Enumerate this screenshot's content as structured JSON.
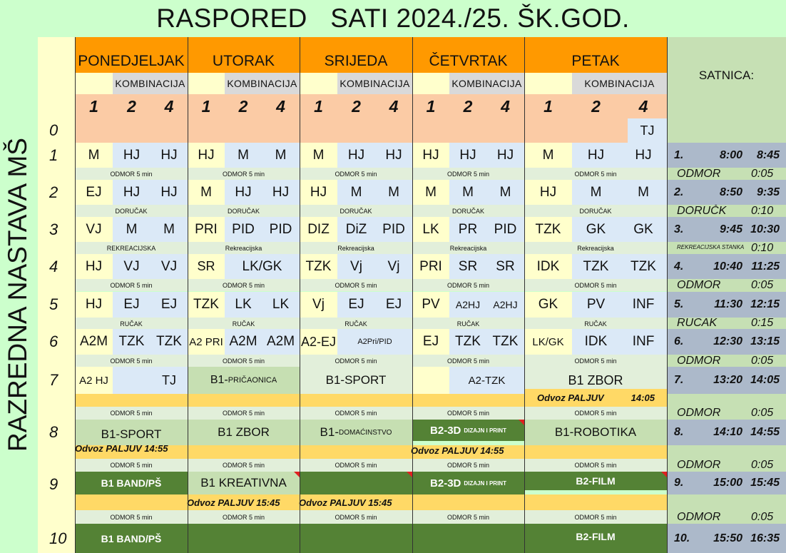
{
  "title": "RASPORED   SATI 2024./25. ŠK.GOD.",
  "side_title": "RAZREDNA NASTAVA MŠ",
  "colors": {
    "background": "#ccffcc",
    "day_header": "#ff9900",
    "peach": "#fbcba5",
    "light_yellow": "#ffffcc",
    "light_blue": "#dbe9f7",
    "light_green": "#e2efda",
    "gold": "#ffd966",
    "olive": "#c6dfb2",
    "dark_green": "#548235",
    "satnica": "#c6e0b4",
    "slate": "#acb9ca"
  },
  "days": [
    "PONEDJELJAK",
    "UTORAK",
    "SRIJEDA",
    "ČETVRTAK",
    "PETAK"
  ],
  "kombinacija": "KOMBINACIJA",
  "satnica_label": "SATNICA:",
  "group_numbers": [
    "1",
    "2",
    "4"
  ],
  "row_numbers": [
    "0",
    "1",
    "2",
    "3",
    "4",
    "5",
    "6",
    "7",
    "8",
    "9",
    "10"
  ],
  "pe_tj_row0": "TJ",
  "lessons": {
    "r1": [
      [
        "M",
        "HJ",
        "HJ"
      ],
      [
        "HJ",
        "M",
        "M"
      ],
      [
        "M",
        "HJ",
        "HJ"
      ],
      [
        "HJ",
        "HJ",
        "HJ"
      ],
      [
        "M",
        "HJ",
        "HJ"
      ]
    ],
    "r2": [
      [
        "EJ",
        "HJ",
        "HJ"
      ],
      [
        "M",
        "HJ",
        "HJ"
      ],
      [
        "HJ",
        "M",
        "M"
      ],
      [
        "M",
        "M",
        "M"
      ],
      [
        "HJ",
        "M",
        "M"
      ]
    ],
    "r3": [
      [
        "VJ",
        "M",
        "M"
      ],
      [
        "PRI",
        "PID",
        "PID"
      ],
      [
        "DIZ",
        "DiZ",
        "PID"
      ],
      [
        "LK",
        "PR",
        "PID"
      ],
      [
        "TZK",
        "GK",
        "GK"
      ]
    ],
    "r4": [
      [
        "HJ",
        "VJ",
        "VJ"
      ],
      [
        "SR",
        "LK/GK"
      ],
      [
        "TZK",
        "Vj",
        "Vj"
      ],
      [
        "PRI",
        "SR",
        "SR"
      ],
      [
        "IDK",
        "TZK",
        "TZK"
      ]
    ],
    "r5": [
      [
        "HJ",
        "EJ",
        "EJ"
      ],
      [
        "TZK",
        "LK",
        "LK"
      ],
      [
        "Vj",
        "EJ",
        "EJ"
      ],
      [
        "PV",
        "A2HJ",
        "A2HJ"
      ],
      [
        "GK",
        "PV",
        "INF"
      ]
    ],
    "r6": [
      [
        "A2M",
        "TZK",
        "TZK"
      ],
      [
        "A2 PRI",
        "A2M",
        "A2M"
      ],
      [
        "A2-EJ",
        "A2Pri/PID"
      ],
      [
        "EJ",
        "TZK",
        "TZK"
      ],
      [
        "LK/GK",
        "IDK",
        "INF"
      ]
    ]
  },
  "breaks": {
    "odmor": "ODMOR 5 min",
    "dorucak": "DORUČAK",
    "rekreacijska_caps": "REKREACIJSKA",
    "rekreacijska": "Rekreacijska",
    "rucak": "RUČAK"
  },
  "row7": {
    "po_a": "A2 HJ",
    "po_b": "TJ",
    "ut": "B1-",
    "ut_small": "PRIČAONICA",
    "sr": "B1-SPORT",
    "ce": "A2-TZK",
    "pe": "B1 ZBOR"
  },
  "odvoz_pe_7": {
    "label": "Odvoz PALJUV",
    "time": "14:05"
  },
  "row8": {
    "po": "B1-SPORT",
    "ut": "B1 ZBOR",
    "sr": "B1-",
    "sr_small": "DOMAĆINSTVO",
    "ce": "B2-3D",
    "ce_small": "DIZAJN I PRINT",
    "pe": "B1-ROBOTIKA"
  },
  "odvoz_8": {
    "po": "Odvoz PALJUV  14:55",
    "ce": "Odvoz PALJUV  14:55"
  },
  "row9": {
    "po": "B1 BAND/PŠ",
    "ut": "B1 KREATIVNA",
    "ce": "B2-3D",
    "ce_small": "DIZAJN I PRINT",
    "pe": "B2-FILM"
  },
  "odvoz_9": {
    "ut": "Odvoz PALJUV  15:45",
    "sr": "Odvoz PALJUV  15:45"
  },
  "row10": {
    "po": "B1 BAND/PŠ",
    "pe": "B2-FILM"
  },
  "satnica": [
    {
      "n": "1.",
      "start": "8:00",
      "end": "8:45"
    },
    {
      "label": "ODMOR",
      "dur": "0:05"
    },
    {
      "n": "2.",
      "start": "8:50",
      "end": "9:35"
    },
    {
      "label": "DORUČK",
      "dur": "0:10"
    },
    {
      "n": "3.",
      "start": "9:45",
      "end": "10:30"
    },
    {
      "label": "REKREACIJSKA STANKA",
      "dur": "0:10"
    },
    {
      "n": "4.",
      "start": "10:40",
      "end": "11:25"
    },
    {
      "label": "ODMOR",
      "dur": "0:05"
    },
    {
      "n": "5.",
      "start": "11:30",
      "end": "12:15"
    },
    {
      "label": "RUČAK",
      "dur": "0:15"
    },
    {
      "n": "6.",
      "start": "12:30",
      "end": "13:15"
    },
    {
      "label": "ODMOR",
      "dur": "0:05"
    },
    {
      "n": "7.",
      "start": "13:20",
      "end": "14:05"
    },
    {
      "label": "ODMOR",
      "dur": "0:05"
    },
    {
      "n": "8.",
      "start": "14:10",
      "end": "14:55"
    },
    {
      "label": "ODMOR",
      "dur": "0:05"
    },
    {
      "n": "9.",
      "start": "15:00",
      "end": "15:45"
    },
    {
      "label": "ODMOR",
      "dur": "0:05"
    },
    {
      "n": "10.",
      "start": "15:50",
      "end": "16:35"
    }
  ]
}
